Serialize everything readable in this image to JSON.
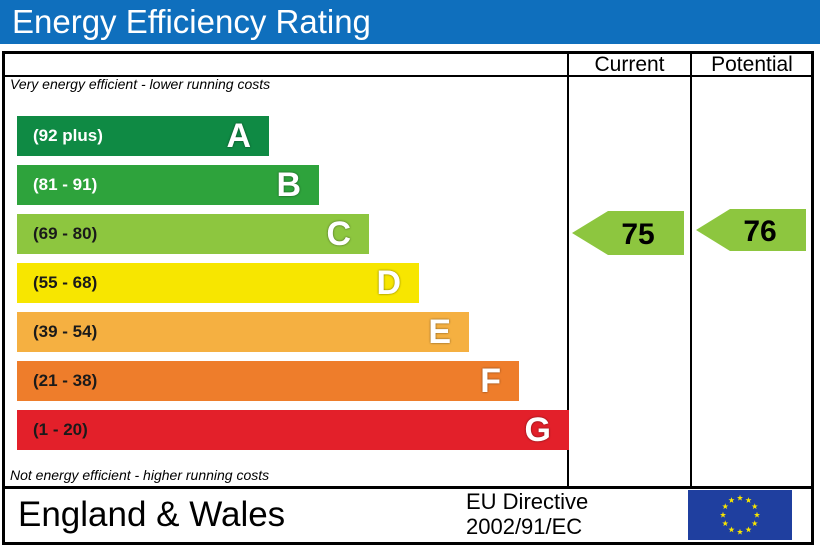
{
  "header": {
    "title": "Energy Efficiency Rating"
  },
  "columns": {
    "current": "Current",
    "potential": "Potential"
  },
  "notes": {
    "top": "Very energy efficient - lower running costs",
    "bottom": "Not energy efficient - higher running costs"
  },
  "footer": {
    "region": "England & Wales",
    "directive_line1": "EU Directive",
    "directive_line2": "2002/91/EC",
    "flag_icon": "eu-flag-icon"
  },
  "chart_data": {
    "type": "bar",
    "title": "Energy Efficiency Rating",
    "categories": [
      "A",
      "B",
      "C",
      "D",
      "E",
      "F",
      "G"
    ],
    "bands": [
      {
        "letter": "A",
        "range": "(92 plus)",
        "min": 92,
        "max": 100,
        "color": "#0f8a44",
        "range_text_color": "#ffffff"
      },
      {
        "letter": "B",
        "range": "(81 - 91)",
        "min": 81,
        "max": 91,
        "color": "#2ea33c",
        "range_text_color": "#ffffff"
      },
      {
        "letter": "C",
        "range": "(69 - 80)",
        "min": 69,
        "max": 80,
        "color": "#8dc63f",
        "range_text_color": "#1a1a1a"
      },
      {
        "letter": "D",
        "range": "(55 - 68)",
        "min": 55,
        "max": 68,
        "color": "#f7e600",
        "range_text_color": "#1a1a1a"
      },
      {
        "letter": "E",
        "range": "(39 - 54)",
        "min": 39,
        "max": 54,
        "color": "#f5b041",
        "range_text_color": "#1a1a1a"
      },
      {
        "letter": "F",
        "range": "(21 - 38)",
        "min": 21,
        "max": 38,
        "color": "#ee7d2b",
        "range_text_color": "#1a1a1a"
      },
      {
        "letter": "G",
        "range": "(1 - 20)",
        "min": 1,
        "max": 20,
        "color": "#e3202a",
        "range_text_color": "#1a1a1a"
      }
    ],
    "series": [
      {
        "name": "Current",
        "value": 75,
        "band": "C",
        "color": "#8dc63f"
      },
      {
        "name": "Potential",
        "value": 76,
        "band": "C",
        "color": "#8dc63f"
      }
    ]
  }
}
